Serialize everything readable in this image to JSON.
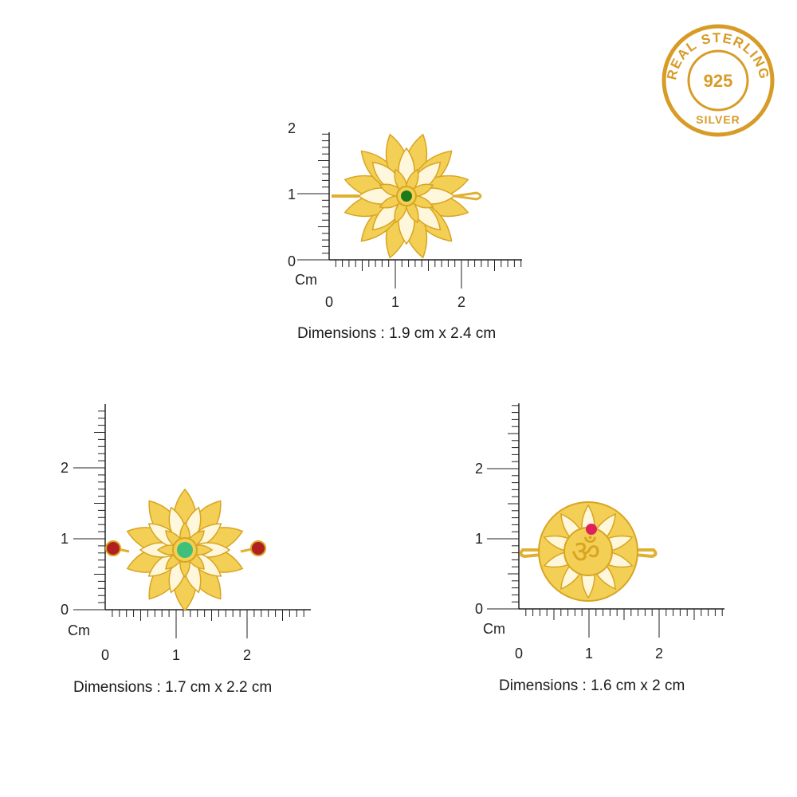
{
  "seal": {
    "arc_text": "REAL STERLING",
    "center_text": "925",
    "bottom_text": "SILVER",
    "color": "#d79b26"
  },
  "axis_unit": "Cm",
  "colors": {
    "gold": "#f2c94c",
    "gold_dark": "#d7a521",
    "axis": "#222222"
  },
  "products": [
    {
      "design": "lotus-mandala",
      "stone_color": "#1c7a1c",
      "side_stone_color": null,
      "y_ticks": [
        "0",
        "1",
        "2"
      ],
      "x_ticks": [
        "0",
        "1",
        "2"
      ],
      "dimensions": "Dimensions : 1.9 cm x 2.4 cm"
    },
    {
      "design": "lotus-flower",
      "stone_color": "#3fc07a",
      "side_stone_color": "#b02020",
      "y_ticks": [
        "0",
        "1",
        "2"
      ],
      "x_ticks": [
        "0",
        "1",
        "2"
      ],
      "dimensions": "Dimensions : 1.7 cm x 2.2 cm"
    },
    {
      "design": "om-round",
      "stone_color": "#e0205a",
      "side_stone_color": null,
      "y_ticks": [
        "0",
        "1",
        "2"
      ],
      "x_ticks": [
        "0",
        "1",
        "2"
      ],
      "dimensions": "Dimensions : 1.6 cm x 2 cm"
    }
  ]
}
